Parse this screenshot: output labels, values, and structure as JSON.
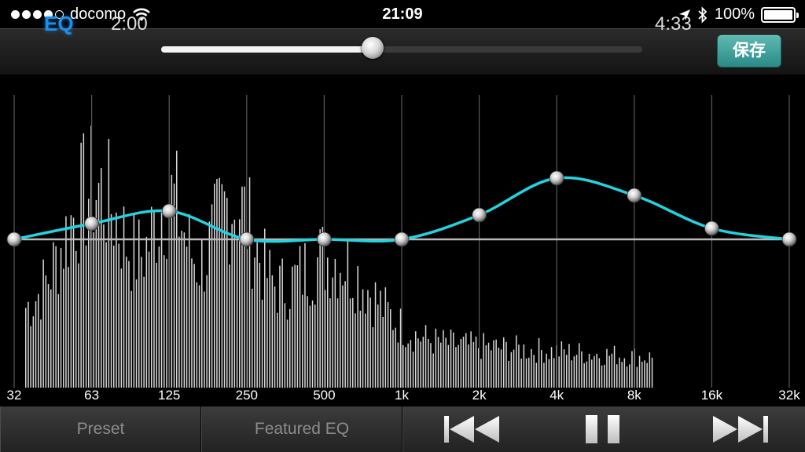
{
  "status_bar": {
    "carrier": "docomo",
    "time": "21:09",
    "battery": "100%",
    "battery_level": 1.0,
    "signal_bars_filled": 4,
    "signal_bars_total": 5
  },
  "player": {
    "eq_label": "EQ",
    "elapsed": "2:00",
    "duration": "4:33",
    "progress": 0.44,
    "save_label": "保存"
  },
  "eq": {
    "bands": [
      "32",
      "63",
      "125",
      "250",
      "500",
      "1k",
      "2k",
      "4k",
      "8k",
      "16k",
      "32k"
    ],
    "gains": [
      0,
      2,
      3.6,
      0,
      0,
      0,
      3.1,
      7.8,
      5.6,
      1.4,
      0
    ],
    "curve_color": "#22d3e0"
  },
  "bottom_bar": {
    "preset_label": "Preset",
    "featured_label": "Featured EQ"
  },
  "icons": {
    "previous": "skip-previous-icon",
    "pause": "pause-icon",
    "next": "skip-next-icon"
  }
}
